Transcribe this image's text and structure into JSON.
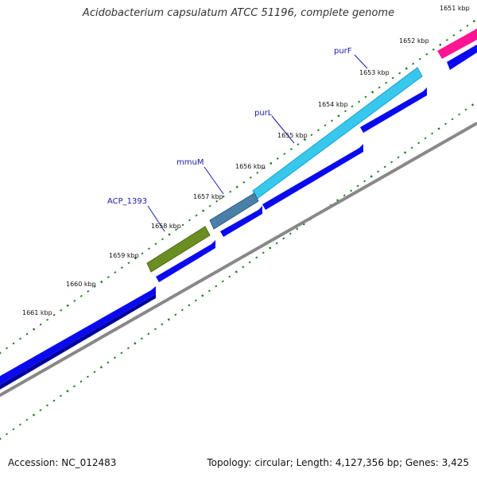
{
  "title": "Acidobacterium capsulatum ATCC 51196, complete genome",
  "accession": "Accession: NC_012483",
  "summary": "Topology: circular; Length: 4,127,356 bp; Genes: 3,425",
  "ticks": [
    {
      "label": "1651 kbp",
      "kbp": 1651
    },
    {
      "label": "1652 kbp",
      "kbp": 1652
    },
    {
      "label": "1653 kbp",
      "kbp": 1653
    },
    {
      "label": "1654 kbp",
      "kbp": 1654
    },
    {
      "label": "1655 kbp",
      "kbp": 1655
    },
    {
      "label": "1656 kbp",
      "kbp": 1656
    },
    {
      "label": "1657 kbp",
      "kbp": 1657
    },
    {
      "label": "1658 kbp",
      "kbp": 1658
    },
    {
      "label": "1659 kbp",
      "kbp": 1659
    },
    {
      "label": "1660 kbp",
      "kbp": 1660
    },
    {
      "label": "1661 kbp",
      "kbp": 1661
    }
  ],
  "genes": [
    {
      "name": "purF",
      "color": "#38c8ee"
    },
    {
      "name": "purL",
      "color": "#38c8ee"
    },
    {
      "name": "mmuM",
      "color": "#4a80a8"
    },
    {
      "name": "ACP_1393",
      "color": "#6b8e23"
    }
  ],
  "colors": {
    "cds": "#0a0af0",
    "backbone": "#888888",
    "ticks": "#1a7a1a",
    "highlight": "#ff1493"
  }
}
